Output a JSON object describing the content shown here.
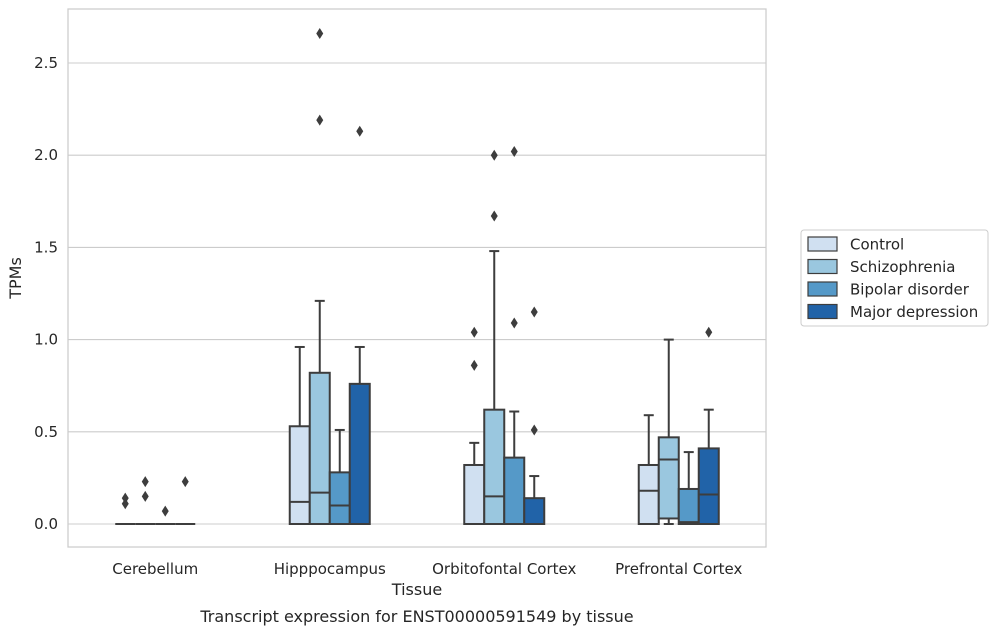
{
  "chart_data": {
    "type": "box",
    "title": "",
    "caption": "Transcript expression for ENST00000591549 by tissue",
    "xlabel": "Tissue",
    "ylabel": "TPMs",
    "ylim": [
      -0.13,
      2.8
    ],
    "yticks": [
      0.0,
      0.5,
      1.0,
      1.5,
      2.0,
      2.5
    ],
    "ytick_labels": [
      "0.0",
      "0.5",
      "1.0",
      "1.5",
      "2.0",
      "2.5"
    ],
    "grid": "horizontal",
    "legend_position": "right",
    "categories": [
      "Cerebellum",
      "Hipppocampus",
      "Orbitofontal Cortex",
      "Prefrontal Cortex"
    ],
    "series": [
      {
        "name": "Control",
        "color": "#d0e0f1",
        "boxes": [
          {
            "min": 0.0,
            "q1": 0.0,
            "median": 0.0,
            "q3": 0.0,
            "max": 0.0,
            "outliers": [
              0.14,
              0.11
            ]
          },
          {
            "min": 0.0,
            "q1": 0.0,
            "median": 0.12,
            "q3": 0.53,
            "max": 0.96,
            "outliers": []
          },
          {
            "min": 0.0,
            "q1": 0.0,
            "median": 0.0,
            "q3": 0.32,
            "max": 0.44,
            "outliers": [
              0.86,
              1.04
            ]
          },
          {
            "min": 0.0,
            "q1": 0.0,
            "median": 0.18,
            "q3": 0.32,
            "max": 0.59,
            "outliers": []
          }
        ]
      },
      {
        "name": "Schizophrenia",
        "color": "#9ac7df",
        "boxes": [
          {
            "min": 0.0,
            "q1": 0.0,
            "median": 0.0,
            "q3": 0.0,
            "max": 0.0,
            "outliers": [
              0.23,
              0.15
            ]
          },
          {
            "min": 0.0,
            "q1": 0.0,
            "median": 0.17,
            "q3": 0.82,
            "max": 1.21,
            "outliers": [
              2.66,
              2.19
            ]
          },
          {
            "min": 0.0,
            "q1": 0.0,
            "median": 0.15,
            "q3": 0.62,
            "max": 1.48,
            "outliers": [
              1.67,
              2.0
            ]
          },
          {
            "min": 0.0,
            "q1": 0.03,
            "median": 0.35,
            "q3": 0.47,
            "max": 1.0,
            "outliers": []
          }
        ]
      },
      {
        "name": "Bipolar disorder",
        "color": "#5599c8",
        "boxes": [
          {
            "min": 0.0,
            "q1": 0.0,
            "median": 0.0,
            "q3": 0.0,
            "max": 0.0,
            "outliers": [
              0.07
            ]
          },
          {
            "min": 0.0,
            "q1": 0.0,
            "median": 0.1,
            "q3": 0.28,
            "max": 0.51,
            "outliers": []
          },
          {
            "min": 0.0,
            "q1": 0.0,
            "median": 0.0,
            "q3": 0.36,
            "max": 0.61,
            "outliers": [
              1.09,
              2.02
            ]
          },
          {
            "min": 0.0,
            "q1": 0.0,
            "median": 0.01,
            "q3": 0.19,
            "max": 0.39,
            "outliers": []
          }
        ]
      },
      {
        "name": "Major depression",
        "color": "#2163a8",
        "boxes": [
          {
            "min": 0.0,
            "q1": 0.0,
            "median": 0.0,
            "q3": 0.0,
            "max": 0.0,
            "outliers": [
              0.23
            ]
          },
          {
            "min": 0.0,
            "q1": 0.0,
            "median": 0.0,
            "q3": 0.76,
            "max": 0.96,
            "outliers": [
              2.13
            ]
          },
          {
            "min": 0.0,
            "q1": 0.0,
            "median": 0.0,
            "q3": 0.14,
            "max": 0.26,
            "outliers": [
              0.51,
              1.15
            ]
          },
          {
            "min": 0.0,
            "q1": 0.0,
            "median": 0.16,
            "q3": 0.41,
            "max": 0.62,
            "outliers": [
              1.04
            ]
          }
        ]
      }
    ]
  }
}
